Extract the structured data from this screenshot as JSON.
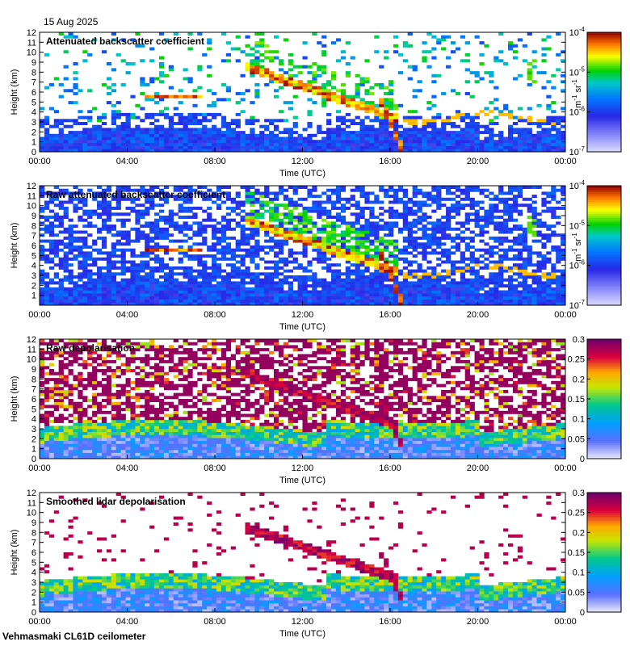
{
  "header": {
    "date": "15 Aug 2025"
  },
  "footer": {
    "instrument": "Vehmasmaki CL61D ceilometer"
  },
  "chart_data": [
    {
      "type": "heatmap",
      "title": "Attenuated backscatter coefficient",
      "xlabel": "Time (UTC)",
      "ylabel": "Height (km)",
      "x_ticks": [
        "00:00",
        "04:00",
        "08:00",
        "12:00",
        "16:00",
        "20:00",
        "00:00"
      ],
      "y_ticks": [
        0,
        1,
        2,
        3,
        4,
        5,
        6,
        7,
        8,
        9,
        10,
        11,
        12
      ],
      "ylim": [
        0,
        12
      ],
      "colorbar": {
        "scale": "log",
        "range": [
          1e-07,
          0.0001
        ],
        "ticks": [
          "10",
          "10",
          "10",
          "10"
        ],
        "tick_exponents": [
          "-7",
          "-6",
          "-5",
          "-4"
        ],
        "label": "m",
        "label_exp1": "-1",
        "label_mid": " sr",
        "label_exp2": "-1"
      }
    },
    {
      "type": "heatmap",
      "title": "Raw attenuated backscatter coefficient",
      "xlabel": "Time (UTC)",
      "ylabel": "Height (km)",
      "x_ticks": [
        "00:00",
        "04:00",
        "08:00",
        "12:00",
        "16:00",
        "20:00",
        "00:00"
      ],
      "y_ticks": [
        1,
        2,
        3,
        4,
        5,
        6,
        7,
        8,
        9,
        10,
        11,
        12
      ],
      "ylim": [
        0,
        12
      ],
      "colorbar": {
        "scale": "log",
        "range": [
          1e-07,
          0.0001
        ],
        "ticks": [
          "10",
          "10",
          "10",
          "10"
        ],
        "tick_exponents": [
          "-7",
          "-6",
          "-5",
          "-4"
        ],
        "label": "m",
        "label_exp1": "-1",
        "label_mid": " sr",
        "label_exp2": "-1"
      }
    },
    {
      "type": "heatmap",
      "title": "Raw depolarisation",
      "xlabel": "Time (UTC)",
      "ylabel": "Height (km)",
      "x_ticks": [
        "00:00",
        "04:00",
        "08:00",
        "12:00",
        "16:00",
        "20:00",
        "00:00"
      ],
      "y_ticks": [
        0,
        1,
        2,
        3,
        4,
        5,
        6,
        7,
        8,
        9,
        10,
        11,
        12
      ],
      "ylim": [
        0,
        12
      ],
      "colorbar": {
        "scale": "linear",
        "range": [
          0,
          0.3
        ],
        "ticks": [
          "0",
          "0.05",
          "0.1",
          "0.15",
          "0.2",
          "0.25",
          "0.3"
        ]
      }
    },
    {
      "type": "heatmap",
      "title": "Smoothed lidar depolarisation",
      "xlabel": "Time (UTC)",
      "ylabel": "Height (km)",
      "x_ticks": [
        "00:00",
        "04:00",
        "08:00",
        "12:00",
        "16:00",
        "20:00",
        "00:00"
      ],
      "y_ticks": [
        0,
        1,
        2,
        3,
        4,
        5,
        6,
        7,
        8,
        9,
        10,
        11,
        12
      ],
      "ylim": [
        0,
        12
      ],
      "colorbar": {
        "scale": "linear",
        "range": [
          0,
          0.3
        ],
        "ticks": [
          "0",
          "0.05",
          "0.1",
          "0.15",
          "0.2",
          "0.25",
          "0.3"
        ]
      }
    }
  ]
}
